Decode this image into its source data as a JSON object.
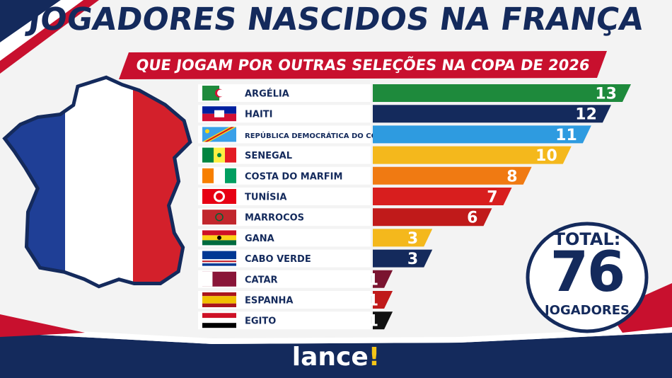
{
  "header": {
    "title": "JOGADORES NASCIDOS NA FRANÇA",
    "subtitle": "QUE JOGAM POR OUTRAS SELEÇÕES NA COPA DE 2026"
  },
  "colors": {
    "navy": "#142a5c",
    "red": "#c8102e",
    "white": "#ffffff"
  },
  "chart_data": {
    "type": "bar",
    "orientation": "horizontal",
    "categories": [
      "ARGÉLIA",
      "HAITI",
      "REPÚBLICA DEMOCRÁTICA DO CONGO",
      "SENEGAL",
      "COSTA DO MARFIM",
      "TUNÍSIA",
      "MARROCOS",
      "GANA",
      "CABO VERDE",
      "CATAR",
      "ESPANHA",
      "EGITO"
    ],
    "values": [
      13,
      12,
      11,
      10,
      8,
      7,
      6,
      3,
      3,
      1,
      1,
      1
    ],
    "bar_colors": [
      "#1e8a3c",
      "#142a5c",
      "#2e9be0",
      "#f4b81c",
      "#f07a12",
      "#d81e1e",
      "#c01a1a",
      "#f4b81c",
      "#142a5c",
      "#7a1430",
      "#c01a1a",
      "#111111"
    ],
    "flags": [
      "algeria-flag",
      "haiti-flag",
      "dr-congo-flag",
      "senegal-flag",
      "ivory-coast-flag",
      "tunisia-flag",
      "morocco-flag",
      "ghana-flag",
      "cape-verde-flag",
      "qatar-flag",
      "spain-flag",
      "egypt-flag"
    ],
    "xlim": [
      0,
      13
    ]
  },
  "total": {
    "label": "TOTAL:",
    "value": "76",
    "unit": "JOGADORES"
  },
  "brand": {
    "name": "lance",
    "mark": "!"
  }
}
